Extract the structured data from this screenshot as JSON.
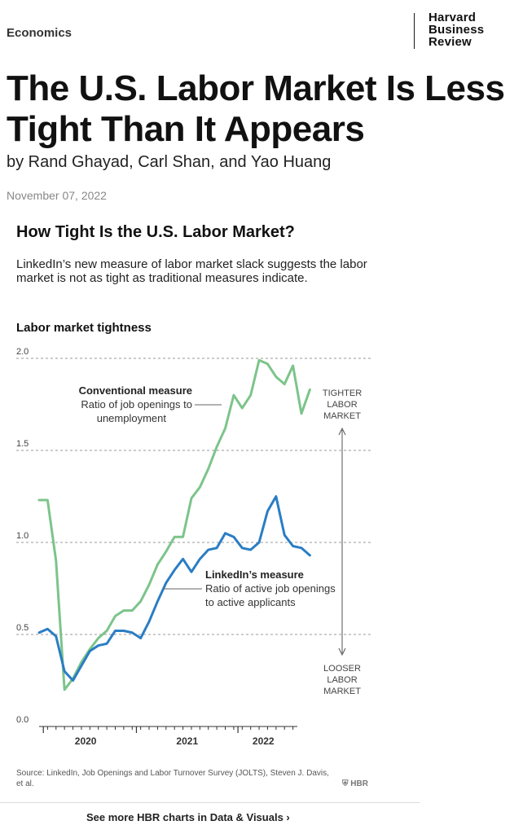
{
  "article": {
    "topic": "Economics",
    "logo": [
      "Harvard",
      "Business",
      "Review"
    ],
    "headline": "The U.S. Labor Market Is Less Tight Than It Appears",
    "byline": "by Rand Ghayad, Carl Shan, and Yao Huang",
    "date": "November 07, 2022"
  },
  "chart_data": {
    "type": "line",
    "title": "How Tight Is the U.S. Labor Market?",
    "subtitle": "LinkedIn’s new measure of labor market slack suggests the labor market is not as tight as traditional measures indicate.",
    "ylabel": "Labor market tightness",
    "ylim": [
      0,
      2.0
    ],
    "y_ticks": [
      "0.0",
      "0.5",
      "1.0",
      "1.5",
      "2.0"
    ],
    "y_tick_values": [
      0,
      0.5,
      1.0,
      1.5,
      2.0
    ],
    "xlim": [
      0,
      31
    ],
    "x_tick_labels": [
      "2020",
      "2021",
      "2022"
    ],
    "x_tick_label_positions": [
      5.5,
      17.5,
      26.5
    ],
    "x_minor_ticks": [
      1,
      2,
      3,
      4,
      5,
      6,
      7,
      8,
      9,
      10,
      11,
      12,
      13,
      14,
      15,
      16,
      17,
      18,
      19,
      20,
      21,
      22,
      23,
      24,
      25,
      26,
      27,
      28,
      29,
      30
    ],
    "x_major_ticks": [
      0.5,
      11.5,
      23.5
    ],
    "grid": true,
    "series": [
      {
        "name": "Conventional measure",
        "color": "#7cc48a",
        "values": [
          1.23,
          1.23,
          0.9,
          0.2,
          0.26,
          0.35,
          0.42,
          0.48,
          0.52,
          0.6,
          0.63,
          0.63,
          0.68,
          0.77,
          0.88,
          0.95,
          1.03,
          1.03,
          1.24,
          1.3,
          1.4,
          1.52,
          1.62,
          1.8,
          1.73,
          1.8,
          1.99,
          1.97,
          1.9,
          1.86,
          1.96,
          1.7,
          1.83
        ]
      },
      {
        "name": "LinkedIn’s measure",
        "color": "#2a7dc4",
        "values": [
          0.51,
          0.53,
          0.49,
          0.3,
          0.25,
          0.33,
          0.41,
          0.44,
          0.45,
          0.52,
          0.52,
          0.51,
          0.48,
          0.57,
          0.68,
          0.78,
          0.85,
          0.91,
          0.84,
          0.91,
          0.96,
          0.97,
          1.05,
          1.03,
          0.97,
          0.96,
          1.0,
          1.17,
          1.25,
          1.04,
          0.98,
          0.97,
          0.93
        ]
      }
    ],
    "annotations": {
      "conventional_title": "Conventional measure",
      "conventional_desc": [
        "Ratio of job openings to",
        "unemployment"
      ],
      "linkedin_title": "LinkedIn’s measure",
      "linkedin_desc": [
        "Ratio of active job openings",
        "to active applicants"
      ],
      "tighter": [
        "TIGHTER",
        "LABOR",
        "MARKET"
      ],
      "looser": [
        "LOOSER",
        "LABOR",
        "MARKET"
      ]
    }
  },
  "footer": {
    "source": "Source: LinkedIn, Job Openings and Labor Turnover Survey (JOLTS), Steven J. Davis, et al.",
    "hbr_mark": "⛨ HBR",
    "more_link": "See more HBR charts in Data & Visuals ›"
  }
}
